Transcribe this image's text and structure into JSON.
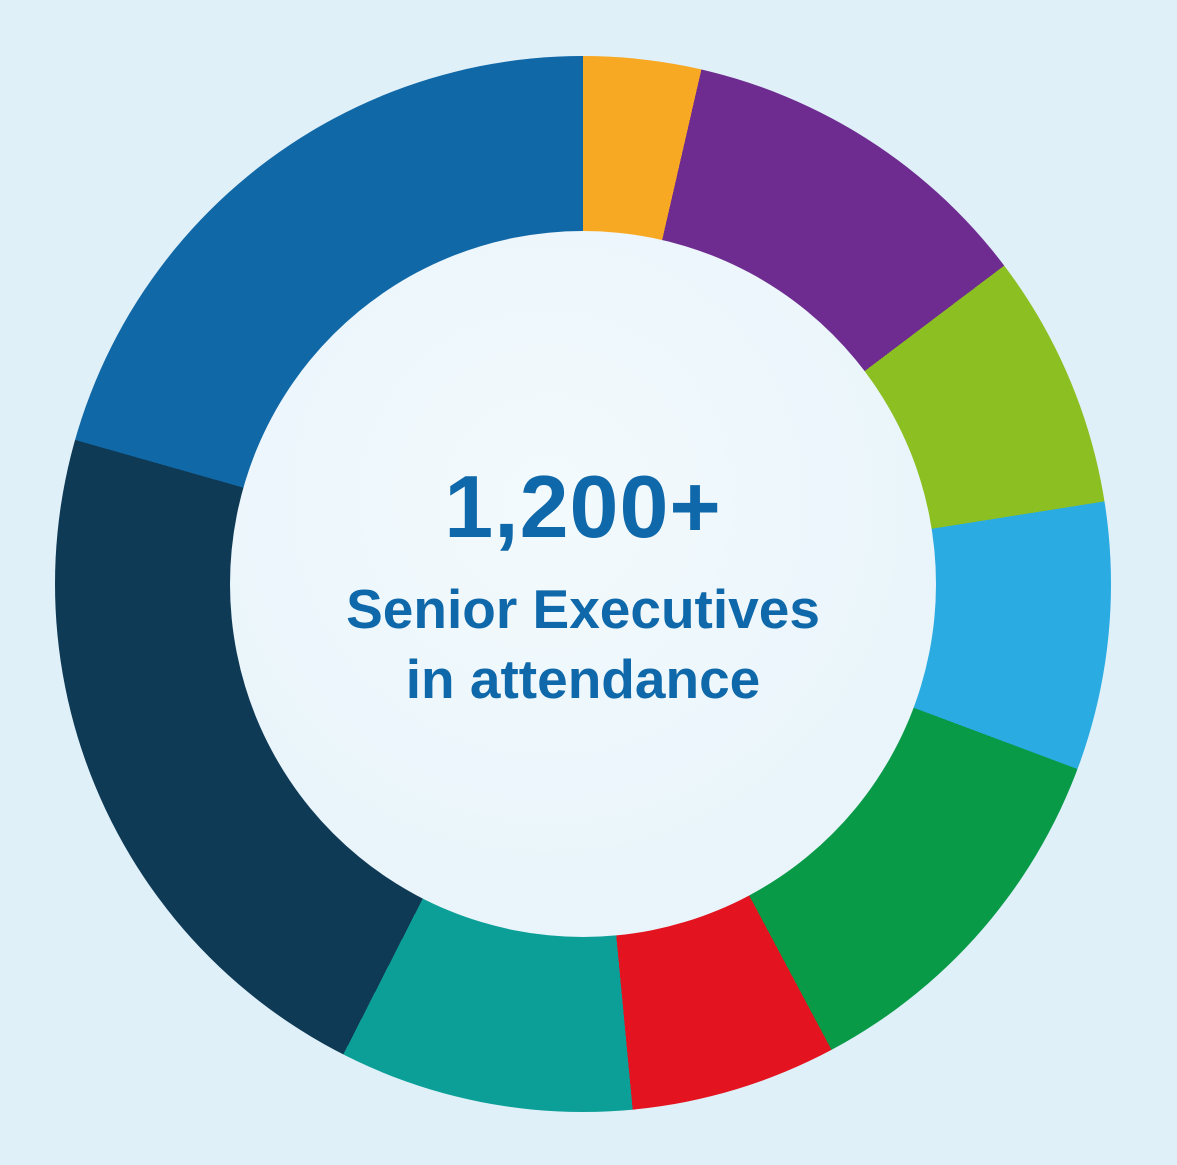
{
  "background_color": "#e0f0f9",
  "center_circle_color": "#eaf5fb",
  "text_color": "#0f68a9",
  "chart_data": {
    "type": "pie",
    "donut": true,
    "inner_radius_ratio": 0.668,
    "start_angle_deg": 0,
    "direction": "clockwise",
    "legend_position": "none",
    "title": "1,200+ Senior Executives in attendance",
    "center_label": {
      "value": "1,200+",
      "line1": "Senior Executives",
      "line2": "in attendance"
    },
    "segments": [
      {
        "name": "orange-segment",
        "color": "#f8a924",
        "value": 3.6
      },
      {
        "name": "purple-segment",
        "color": "#6e2c90",
        "value": 11.1
      },
      {
        "name": "lime-green-segment",
        "color": "#8cbf22",
        "value": 7.8
      },
      {
        "name": "sky-blue-segment",
        "color": "#2aabe2",
        "value": 8.2
      },
      {
        "name": "green-segment",
        "color": "#089a47",
        "value": 11.5
      },
      {
        "name": "red-segment",
        "color": "#e3131f",
        "value": 6.3
      },
      {
        "name": "teal-segment",
        "color": "#0c9f97",
        "value": 9.0
      },
      {
        "name": "navy-segment",
        "color": "#0e3a56",
        "value": 21.9
      },
      {
        "name": "blue-segment",
        "color": "#1168a7",
        "value": 20.6
      }
    ]
  }
}
